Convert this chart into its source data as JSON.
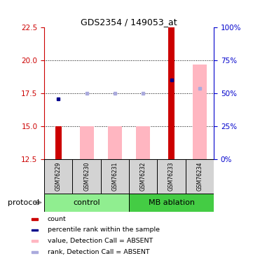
{
  "title": "GDS2354 / 149053_at",
  "samples": [
    "GSM76229",
    "GSM76230",
    "GSM76231",
    "GSM76232",
    "GSM76233",
    "GSM76234"
  ],
  "ylim_left": [
    12.5,
    22.5
  ],
  "ylim_right": [
    0,
    100
  ],
  "yticks_left": [
    12.5,
    15.0,
    17.5,
    20.0,
    22.5
  ],
  "yticks_right": [
    0,
    25,
    50,
    75,
    100
  ],
  "red_bar_tops": [
    15.0,
    null,
    null,
    null,
    22.5,
    null
  ],
  "pink_bar_tops": [
    null,
    15.0,
    15.0,
    15.0,
    null,
    19.7
  ],
  "blue_sq_y": [
    17.1,
    null,
    null,
    null,
    18.5,
    null
  ],
  "lblue_sq_y": [
    null,
    17.5,
    17.5,
    17.5,
    null,
    17.9
  ],
  "bar_bottom": 12.5,
  "red_bar_color": "#CC0000",
  "pink_bar_color": "#FFB6C1",
  "blue_sq_color": "#00008B",
  "lblue_sq_color": "#AAAADD",
  "left_axis_color": "#CC0000",
  "right_axis_color": "#0000CC",
  "control_color": "#90EE90",
  "mb_color": "#44CC44",
  "sample_box_color": "#D3D3D3",
  "legend_items": [
    {
      "color": "#CC0000",
      "label": "count"
    },
    {
      "color": "#00008B",
      "label": "percentile rank within the sample"
    },
    {
      "color": "#FFB6C1",
      "label": "value, Detection Call = ABSENT"
    },
    {
      "color": "#AAAADD",
      "label": "rank, Detection Call = ABSENT"
    }
  ]
}
